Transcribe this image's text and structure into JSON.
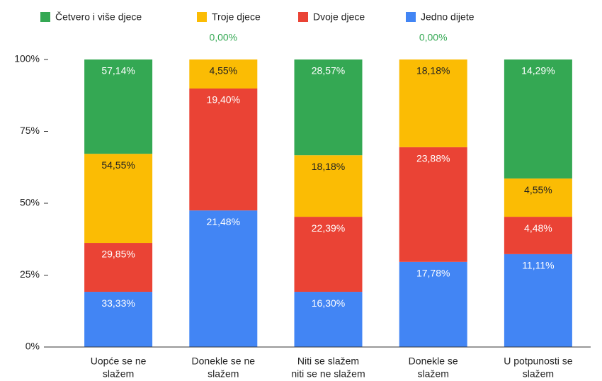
{
  "chart_data": {
    "type": "stacked_bar_100",
    "categories": [
      [
        "Uopće se ne",
        "slažem"
      ],
      [
        "Donekle se ne",
        "slažem"
      ],
      [
        "Niti se slažem",
        "niti se ne slažem"
      ],
      [
        "Donekle se",
        "slažem"
      ],
      [
        "U potpunosti se",
        "slažem"
      ]
    ],
    "series": [
      {
        "name": "Četvero i više djece",
        "color": "#34a853",
        "values": [
          32.8,
          0,
          33.3,
          0,
          41.4
        ],
        "labels": [
          "57,14%",
          "0,00%",
          "28,57%",
          "0,00%",
          "14,29%"
        ]
      },
      {
        "name": "Troje djece",
        "color": "#fbbc04",
        "values": [
          31.0,
          10.1,
          21.4,
          30.5,
          13.3
        ],
        "labels": [
          "54,55%",
          "4,55%",
          "18,18%",
          "18,18%",
          "4,55%"
        ]
      },
      {
        "name": "Dvoje djece",
        "color": "#ea4335",
        "values": [
          17.0,
          42.4,
          26.1,
          39.9,
          13.0
        ],
        "labels": [
          "29,85%",
          "19,40%",
          "22,39%",
          "23,88%",
          "4,48%"
        ]
      },
      {
        "name": "Jedno dijete",
        "color": "#4285f4",
        "values": [
          19.2,
          47.5,
          19.2,
          29.6,
          32.3
        ],
        "labels": [
          "33,33%",
          "21,48%",
          "16,30%",
          "17,78%",
          "11,11%"
        ]
      }
    ],
    "ylim": [
      0,
      100
    ],
    "yticks": [
      {
        "value": 0,
        "label": "0%"
      },
      {
        "value": 25,
        "label": "25%"
      },
      {
        "value": 50,
        "label": "50%"
      },
      {
        "value": 75,
        "label": "75%"
      },
      {
        "value": 100,
        "label": "100%"
      }
    ],
    "legend": "top"
  }
}
